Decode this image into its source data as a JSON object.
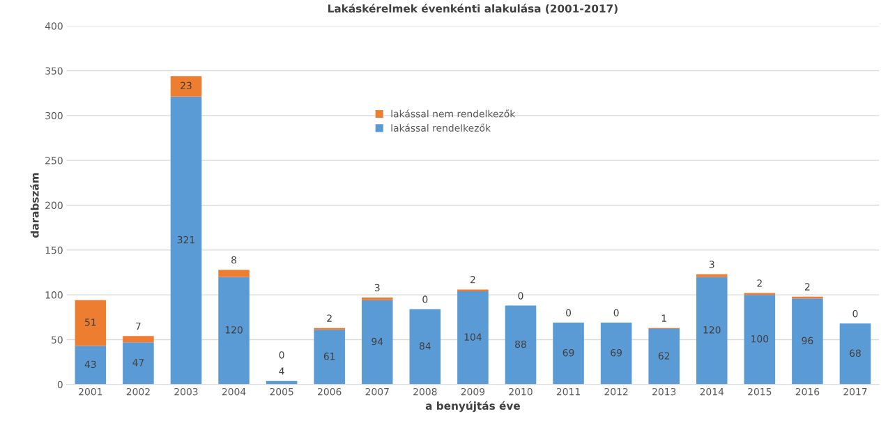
{
  "chart_data": {
    "type": "bar",
    "title": "Lakáskérelmek évenkénti alakulása (2001-2017)",
    "xlabel": "a benyújtás éve",
    "ylabel": "darabszám",
    "categories": [
      "2001",
      "2002",
      "2003",
      "2004",
      "2005",
      "2006",
      "2007",
      "2008",
      "2009",
      "2010",
      "2011",
      "2012",
      "2013",
      "2014",
      "2015",
      "2016",
      "2017"
    ],
    "stacked": true,
    "series": [
      {
        "name": "lakással rendelkezők",
        "color": "#5b9bd5",
        "values": [
          43,
          47,
          321,
          120,
          4,
          61,
          94,
          84,
          104,
          88,
          69,
          69,
          62,
          120,
          100,
          96,
          68
        ]
      },
      {
        "name": "lakással nem rendelkezők",
        "color": "#ed7d31",
        "values": [
          51,
          7,
          23,
          8,
          0,
          2,
          3,
          0,
          2,
          0,
          0,
          0,
          1,
          3,
          2,
          2,
          0
        ]
      }
    ],
    "ylim": [
      0,
      400
    ],
    "yticks": [
      0,
      50,
      100,
      150,
      200,
      250,
      300,
      350,
      400
    ],
    "grid": "y",
    "legend": "top",
    "data_labels": true
  }
}
